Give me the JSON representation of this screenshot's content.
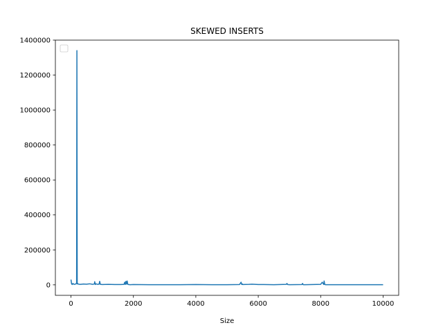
{
  "chart_data": {
    "type": "line",
    "title": "SKEWED INSERTS",
    "xlabel": "Size",
    "ylabel": "",
    "xlim": [
      -500,
      10500
    ],
    "ylim": [
      -60000,
      1400000
    ],
    "xticks": [
      0,
      2000,
      4000,
      6000,
      8000,
      10000
    ],
    "yticks": [
      0,
      200000,
      400000,
      600000,
      800000,
      1000000,
      1200000,
      1400000
    ],
    "legend": "top-left, empty",
    "color": "#1f77b4",
    "series": [
      {
        "x": [
          0,
          20,
          40,
          60,
          100,
          140,
          160,
          180,
          190,
          195,
          200,
          210,
          240,
          300,
          400,
          500,
          600,
          700,
          750,
          760,
          780,
          800,
          850,
          900,
          920,
          940,
          1000,
          1200,
          1400,
          1600,
          1700,
          1720,
          1740,
          1760,
          1780,
          1800,
          1820,
          1840,
          1900,
          2000,
          2500,
          3000,
          3500,
          4000,
          4500,
          5000,
          5400,
          5450,
          5470,
          5490,
          5500,
          5700,
          5800,
          6000,
          6500,
          6900,
          6920,
          6940,
          7000,
          7400,
          7420,
          7440,
          7500,
          8000,
          8050,
          8100,
          8110,
          8130,
          8150,
          8200,
          8500,
          9000,
          9500,
          10000
        ],
        "y": [
          30000,
          5000,
          2000,
          8000,
          3000,
          4000,
          6000,
          10000,
          1340000,
          600000,
          5000,
          8000,
          4000,
          3000,
          5000,
          4000,
          6000,
          3000,
          5000,
          18000,
          2000,
          6000,
          3000,
          4000,
          20000,
          3000,
          2000,
          3000,
          2000,
          2000,
          3000,
          15000,
          2000,
          20000,
          4000,
          22000,
          3000,
          2000,
          1000,
          2000,
          1000,
          1000,
          1000,
          2000,
          1000,
          1000,
          2000,
          15000,
          2000,
          5000,
          2000,
          3000,
          4000,
          2000,
          1000,
          3000,
          8000,
          2000,
          1000,
          2000,
          8000,
          1000,
          1000,
          3000,
          15000,
          2000,
          22000,
          3000,
          1000,
          1000,
          1000,
          1000,
          1000,
          1000
        ]
      }
    ]
  }
}
